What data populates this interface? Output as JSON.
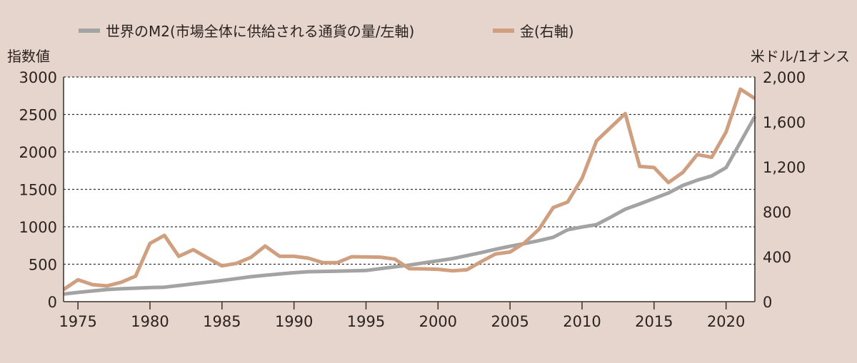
{
  "chart_data": {
    "type": "line",
    "title": "",
    "legend": [
      {
        "name": "世界のM2(市場全体に供給される通貨の量/左軸)",
        "color": "#a3a3a3"
      },
      {
        "name": "金(右軸)",
        "color": "#cf9f80"
      }
    ],
    "legend_position": "top",
    "ylabel_left": "指数値",
    "ylabel_right": "米ドル/1オンス",
    "xlim": [
      1974,
      2022
    ],
    "ylim_left": [
      0,
      3000
    ],
    "ylim_right": [
      0,
      2000
    ],
    "x_ticks": [
      1975,
      1980,
      1985,
      1990,
      1995,
      2000,
      2005,
      2010,
      2015,
      2020
    ],
    "x_tick_labels": [
      "1975",
      "1980",
      "1985",
      "1990",
      "1995",
      "2000",
      "2005",
      "2010",
      "2015",
      "2020"
    ],
    "y_left_ticks": [
      0,
      500,
      1000,
      1500,
      2000,
      2500,
      3000
    ],
    "y_left_tick_labels": [
      "0",
      "500",
      "1000",
      "1500",
      "2000",
      "2500",
      "3000"
    ],
    "y_right_ticks": [
      0,
      400,
      800,
      1200,
      1600,
      2000
    ],
    "y_right_tick_labels": [
      "0",
      "400",
      "800",
      "1,200",
      "1,600",
      "2,000"
    ],
    "grid": "horizontal dotted",
    "x": [
      1974,
      1975,
      1976,
      1977,
      1978,
      1979,
      1980,
      1981,
      1982,
      1983,
      1984,
      1985,
      1986,
      1987,
      1988,
      1989,
      1990,
      1991,
      1992,
      1993,
      1994,
      1995,
      1996,
      1997,
      1998,
      1999,
      2000,
      2001,
      2002,
      2003,
      2004,
      2005,
      2006,
      2007,
      2008,
      2009,
      2010,
      2011,
      2012,
      2013,
      2014,
      2015,
      2016,
      2017,
      2018,
      2019,
      2020,
      2021,
      2022
    ],
    "series": [
      {
        "name": "世界のM2",
        "axis": "left",
        "color": "#a3a3a3",
        "values": [
          102,
          124,
          143,
          162,
          172,
          180,
          188,
          193,
          215,
          238,
          260,
          283,
          308,
          333,
          352,
          370,
          387,
          400,
          404,
          408,
          412,
          416,
          441,
          465,
          489,
          518,
          546,
          575,
          615,
          655,
          700,
          740,
          775,
          815,
          860,
          960,
          997,
          1029,
          1130,
          1235,
          1305,
          1378,
          1451,
          1552,
          1622,
          1679,
          1790,
          2130,
          2473
        ]
      },
      {
        "name": "金",
        "axis": "right",
        "color": "#cf9f80",
        "values": [
          108,
          195,
          152,
          140,
          173,
          227,
          519,
          590,
          404,
          463,
          389,
          319,
          341,
          394,
          495,
          404,
          404,
          387,
          347,
          347,
          400,
          398,
          396,
          379,
          294,
          292,
          288,
          275,
          284,
          357,
          425,
          442,
          523,
          643,
          838,
          887,
          1098,
          1431,
          1553,
          1674,
          1204,
          1194,
          1060,
          1151,
          1310,
          1285,
          1511,
          1892,
          1808
        ]
      }
    ]
  }
}
